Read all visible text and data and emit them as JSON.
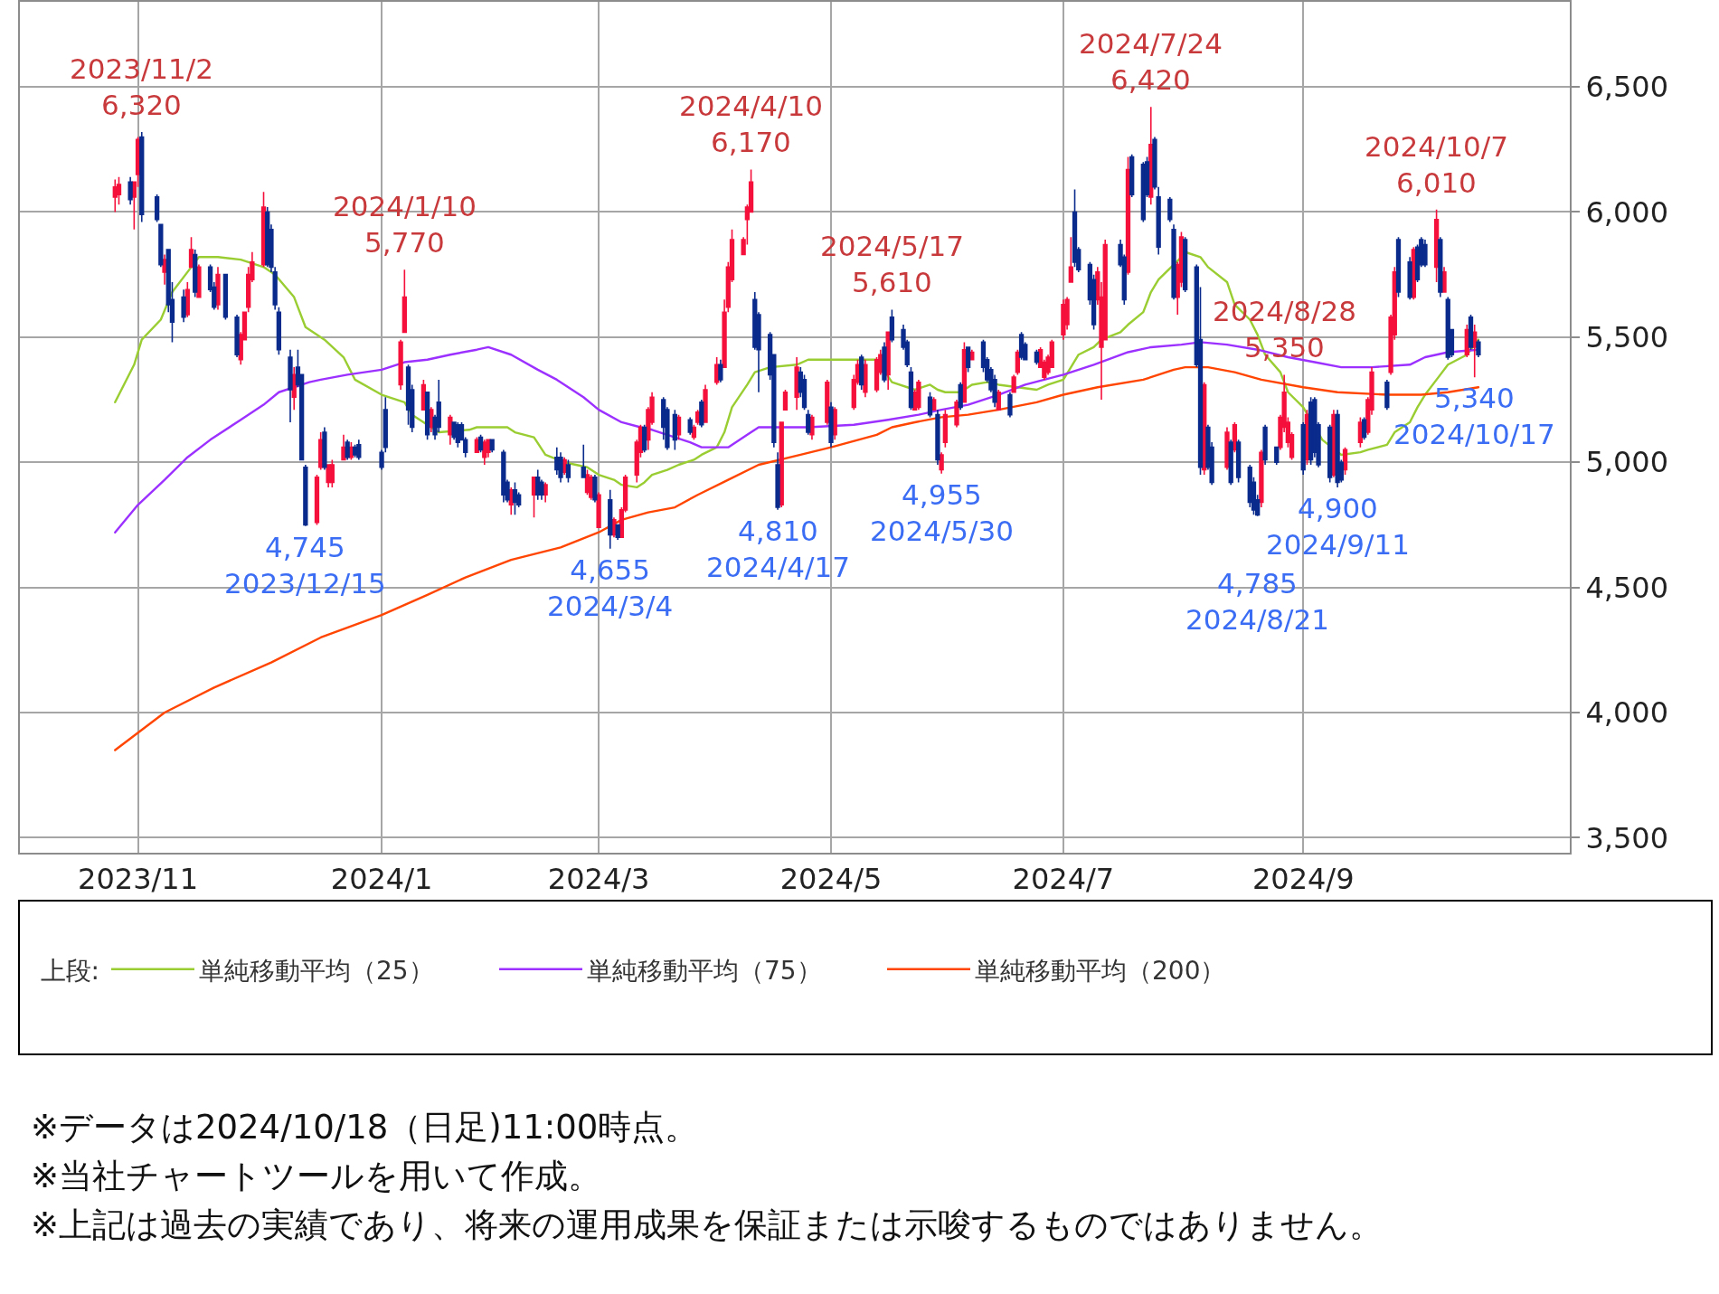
{
  "chart_data": {
    "type": "candlestick",
    "x": [
      "2023-10-26",
      "2023-10-27",
      "2023-10-30",
      "2023-10-31",
      "2023-11-01",
      "2023-11-02",
      "2023-11-06",
      "2023-11-07",
      "2023-11-08",
      "2023-11-09",
      "2023-11-10",
      "2023-11-13",
      "2023-11-14",
      "2023-11-15",
      "2023-11-16",
      "2023-11-17",
      "2023-11-20",
      "2023-11-21",
      "2023-11-22",
      "2023-11-24",
      "2023-11-27",
      "2023-11-28",
      "2023-11-29",
      "2023-11-30",
      "2023-12-01",
      "2023-12-04",
      "2023-12-05",
      "2023-12-06",
      "2023-12-07",
      "2023-12-08",
      "2023-12-11",
      "2023-12-12",
      "2023-12-13",
      "2023-12-14",
      "2023-12-15",
      "2023-12-18",
      "2023-12-19",
      "2023-12-20",
      "2023-12-21",
      "2023-12-22",
      "2023-12-25",
      "2023-12-26",
      "2023-12-27",
      "2023-12-28",
      "2023-12-29",
      "2024-01-04",
      "2024-01-05",
      "2024-01-09",
      "2024-01-10",
      "2024-01-11",
      "2024-01-12",
      "2024-01-15",
      "2024-01-16",
      "2024-01-17",
      "2024-01-18",
      "2024-01-19",
      "2024-01-22",
      "2024-01-23",
      "2024-01-24",
      "2024-01-25",
      "2024-01-26",
      "2024-01-29",
      "2024-01-30",
      "2024-01-31",
      "2024-02-01",
      "2024-02-02",
      "2024-02-05",
      "2024-02-06",
      "2024-02-07",
      "2024-02-08",
      "2024-02-09",
      "2024-02-13",
      "2024-02-14",
      "2024-02-15",
      "2024-02-16",
      "2024-02-19",
      "2024-02-20",
      "2024-02-21",
      "2024-02-22",
      "2024-02-26",
      "2024-02-27",
      "2024-02-28",
      "2024-02-29",
      "2024-03-01",
      "2024-03-04",
      "2024-03-05",
      "2024-03-06",
      "2024-03-07",
      "2024-03-08",
      "2024-03-11",
      "2024-03-12",
      "2024-03-13",
      "2024-03-14",
      "2024-03-15",
      "2024-03-18",
      "2024-03-19",
      "2024-03-21",
      "2024-03-22",
      "2024-03-25",
      "2024-03-26",
      "2024-03-27",
      "2024-03-28",
      "2024-03-29",
      "2024-04-01",
      "2024-04-02",
      "2024-04-03",
      "2024-04-04",
      "2024-04-05",
      "2024-04-08",
      "2024-04-09",
      "2024-04-10",
      "2024-04-11",
      "2024-04-12",
      "2024-04-15",
      "2024-04-16",
      "2024-04-17",
      "2024-04-18",
      "2024-04-19",
      "2024-04-22",
      "2024-04-23",
      "2024-04-24",
      "2024-04-25",
      "2024-04-26",
      "2024-04-30",
      "2024-05-01",
      "2024-05-02",
      "2024-05-07",
      "2024-05-08",
      "2024-05-09",
      "2024-05-10",
      "2024-05-13",
      "2024-05-14",
      "2024-05-15",
      "2024-05-16",
      "2024-05-17",
      "2024-05-20",
      "2024-05-21",
      "2024-05-22",
      "2024-05-23",
      "2024-05-24",
      "2024-05-27",
      "2024-05-28",
      "2024-05-29",
      "2024-05-30",
      "2024-05-31",
      "2024-06-03",
      "2024-06-04",
      "2024-06-05",
      "2024-06-06",
      "2024-06-07",
      "2024-06-10",
      "2024-06-11",
      "2024-06-12",
      "2024-06-13",
      "2024-06-14",
      "2024-06-17",
      "2024-06-18",
      "2024-06-19",
      "2024-06-20",
      "2024-06-21",
      "2024-06-24",
      "2024-06-25",
      "2024-06-26",
      "2024-06-27",
      "2024-06-28",
      "2024-07-01",
      "2024-07-02",
      "2024-07-03",
      "2024-07-04",
      "2024-07-05",
      "2024-07-08",
      "2024-07-09",
      "2024-07-10",
      "2024-07-11",
      "2024-07-12",
      "2024-07-16",
      "2024-07-17",
      "2024-07-18",
      "2024-07-19",
      "2024-07-22",
      "2024-07-23",
      "2024-07-24",
      "2024-07-25",
      "2024-07-26",
      "2024-07-29",
      "2024-07-30",
      "2024-07-31",
      "2024-08-01",
      "2024-08-02",
      "2024-08-05",
      "2024-08-06",
      "2024-08-07",
      "2024-08-08",
      "2024-08-09",
      "2024-08-13",
      "2024-08-14",
      "2024-08-15",
      "2024-08-16",
      "2024-08-19",
      "2024-08-20",
      "2024-08-21",
      "2024-08-22",
      "2024-08-23",
      "2024-08-26",
      "2024-08-27",
      "2024-08-28",
      "2024-08-29",
      "2024-08-30",
      "2024-09-02",
      "2024-09-03",
      "2024-09-04",
      "2024-09-05",
      "2024-09-06",
      "2024-09-09",
      "2024-09-10",
      "2024-09-11",
      "2024-09-12",
      "2024-09-13",
      "2024-09-17",
      "2024-09-18",
      "2024-09-19",
      "2024-09-20",
      "2024-09-24",
      "2024-09-25",
      "2024-09-26",
      "2024-09-27",
      "2024-09-30",
      "2024-10-01",
      "2024-10-02",
      "2024-10-03",
      "2024-10-04",
      "2024-10-07",
      "2024-10-08",
      "2024-10-09",
      "2024-10-10",
      "2024-10-11",
      "2024-10-15",
      "2024-10-16",
      "2024-10-17",
      "2024-10-18"
    ],
    "ohlc": [
      [
        6060,
        6130,
        6000,
        6100
      ],
      [
        6070,
        6140,
        6030,
        6110
      ],
      [
        6120,
        6140,
        6030,
        6050
      ],
      [
        6060,
        6120,
        5930,
        6120
      ],
      [
        6150,
        6300,
        6100,
        6290
      ],
      [
        6300,
        6320,
        5960,
        5990
      ],
      [
        6060,
        6070,
        5960,
        5970
      ],
      [
        5950,
        5950,
        5780,
        5790
      ],
      [
        5760,
        5830,
        5710,
        5810
      ],
      [
        5850,
        5850,
        5600,
        5630
      ],
      [
        5650,
        5720,
        5480,
        5560
      ],
      [
        5660,
        5690,
        5560,
        5580
      ],
      [
        5590,
        5720,
        5580,
        5690
      ],
      [
        5780,
        5900,
        5780,
        5850
      ],
      [
        5830,
        5850,
        5660,
        5680
      ],
      [
        5660,
        5790,
        5660,
        5780
      ],
      [
        5780,
        5790,
        5680,
        5690
      ],
      [
        5700,
        5720,
        5610,
        5620
      ],
      [
        5630,
        5780,
        5610,
        5750
      ],
      [
        5750,
        5750,
        5570,
        5580
      ],
      [
        5580,
        5590,
        5420,
        5430
      ],
      [
        5410,
        5520,
        5390,
        5510
      ],
      [
        5490,
        5600,
        5490,
        5600
      ],
      [
        5620,
        5780,
        5600,
        5750
      ],
      [
        5730,
        5840,
        5720,
        5800
      ],
      [
        5790,
        6080,
        5780,
        6020
      ],
      [
        6000,
        6020,
        5780,
        5790
      ],
      [
        5930,
        5950,
        5760,
        5780
      ],
      [
        5760,
        5780,
        5610,
        5630
      ],
      [
        5600,
        5620,
        5430,
        5450
      ],
      [
        5420,
        5450,
        5160,
        5290
      ],
      [
        5260,
        5380,
        5210,
        5350
      ],
      [
        5380,
        5450,
        5300,
        5310
      ],
      [
        5350,
        5350,
        5010,
        5010
      ],
      [
        4980,
        4990,
        4745,
        4750
      ],
      [
        4760,
        4950,
        4750,
        4940
      ],
      [
        4980,
        5120,
        4970,
        5090
      ],
      [
        5120,
        5140,
        4970,
        4980
      ],
      [
        4920,
        4990,
        4900,
        4990
      ],
      [
        4920,
        5010,
        4900,
        4990
      ],
      [
        5010,
        5110,
        5010,
        5060
      ],
      [
        5080,
        5090,
        5010,
        5020
      ],
      [
        5020,
        5080,
        5010,
        5060
      ],
      [
        5060,
        5070,
        5020,
        5030
      ],
      [
        5070,
        5090,
        5010,
        5020
      ],
      [
        5040,
        5050,
        4970,
        4980
      ],
      [
        5210,
        5260,
        5040,
        5060
      ],
      [
        5310,
        5490,
        5290,
        5480
      ],
      [
        5520,
        5770,
        5520,
        5660
      ],
      [
        5380,
        5390,
        5150,
        5210
      ],
      [
        5290,
        5310,
        5120,
        5140
      ],
      [
        5210,
        5330,
        5210,
        5310
      ],
      [
        5280,
        5280,
        5090,
        5110
      ],
      [
        5140,
        5220,
        5120,
        5210
      ],
      [
        5180,
        5190,
        5090,
        5110
      ],
      [
        5240,
        5330,
        5120,
        5140
      ],
      [
        5110,
        5190,
        5070,
        5180
      ],
      [
        5160,
        5160,
        5090,
        5100
      ],
      [
        5150,
        5160,
        5060,
        5080
      ],
      [
        5150,
        5160,
        5090,
        5090
      ],
      [
        5090,
        5100,
        5020,
        5040
      ],
      [
        5040,
        5100,
        5040,
        5090
      ],
      [
        5100,
        5110,
        5040,
        5050
      ],
      [
        5020,
        5090,
        4990,
        5080
      ],
      [
        5040,
        5090,
        5020,
        5090
      ],
      [
        5090,
        5090,
        5040,
        5050
      ],
      [
        5040,
        5050,
        4840,
        4870
      ],
      [
        4920,
        4930,
        4840,
        4850
      ],
      [
        4830,
        4900,
        4790,
        4890
      ],
      [
        4890,
        4920,
        4790,
        4840
      ],
      [
        4870,
        4880,
        4820,
        4830
      ],
      [
        4870,
        4940,
        4780,
        4940
      ],
      [
        4940,
        4970,
        4850,
        4870
      ],
      [
        4920,
        4930,
        4850,
        4870
      ],
      [
        4870,
        4920,
        4840,
        4910
      ],
      [
        5020,
        5060,
        4950,
        4970
      ],
      [
        5020,
        5040,
        4920,
        4940
      ],
      [
        4960,
        5020,
        4950,
        5010
      ],
      [
        4990,
        5010,
        4920,
        4940
      ],
      [
        4980,
        5070,
        4940,
        4940
      ],
      [
        4880,
        4970,
        4870,
        4950
      ],
      [
        4860,
        4950,
        4850,
        4940
      ],
      [
        4940,
        4950,
        4840,
        4850
      ],
      [
        4740,
        4880,
        4740,
        4870
      ],
      [
        4850,
        4890,
        4655,
        4710
      ],
      [
        4710,
        4780,
        4700,
        4770
      ],
      [
        4750,
        4750,
        4690,
        4700
      ],
      [
        4700,
        4820,
        4700,
        4810
      ],
      [
        4810,
        4950,
        4800,
        4940
      ],
      [
        4950,
        5090,
        4920,
        5080
      ],
      [
        5040,
        5150,
        5020,
        5140
      ],
      [
        5140,
        5150,
        5040,
        5050
      ],
      [
        5090,
        5220,
        5050,
        5210
      ],
      [
        5160,
        5280,
        5150,
        5260
      ],
      [
        5250,
        5260,
        5090,
        5140
      ],
      [
        5210,
        5220,
        5050,
        5060
      ],
      [
        5190,
        5210,
        5050,
        5090
      ],
      [
        5110,
        5190,
        5090,
        5180
      ],
      [
        5170,
        5180,
        5110,
        5120
      ],
      [
        5100,
        5150,
        5090,
        5140
      ],
      [
        5160,
        5210,
        5150,
        5200
      ],
      [
        5240,
        5250,
        5140,
        5150
      ],
      [
        5160,
        5310,
        5160,
        5290
      ],
      [
        5320,
        5420,
        5310,
        5390
      ],
      [
        5390,
        5410,
        5320,
        5330
      ],
      [
        5380,
        5650,
        5380,
        5600
      ],
      [
        5620,
        5800,
        5600,
        5780
      ],
      [
        5730,
        5930,
        5720,
        5890
      ],
      [
        5830,
        5900,
        5830,
        5890
      ],
      [
        5970,
        6030,
        5870,
        6020
      ],
      [
        6000,
        6170,
        6000,
        6120
      ],
      [
        5650,
        5680,
        5450,
        5460
      ],
      [
        5590,
        5600,
        5280,
        5450
      ],
      [
        5510,
        5520,
        5330,
        5350
      ],
      [
        5430,
        5430,
        5060,
        5080
      ],
      [
        4990,
        5040,
        4810,
        4820
      ],
      [
        4830,
        5160,
        4820,
        5160
      ],
      [
        5210,
        5290,
        5210,
        5280
      ],
      [
        5260,
        5420,
        5210,
        5380
      ],
      [
        5360,
        5380,
        5260,
        5280
      ],
      [
        5330,
        5350,
        5210,
        5220
      ],
      [
        5190,
        5210,
        5110,
        5120
      ],
      [
        5110,
        5190,
        5090,
        5180
      ],
      [
        5160,
        5330,
        5150,
        5320
      ],
      [
        5220,
        5240,
        5060,
        5080
      ],
      [
        5110,
        5220,
        5090,
        5210
      ],
      [
        5220,
        5350,
        5210,
        5330
      ],
      [
        5320,
        5410,
        5310,
        5390
      ],
      [
        5420,
        5430,
        5290,
        5310
      ],
      [
        5280,
        5410,
        5260,
        5390
      ],
      [
        5290,
        5420,
        5280,
        5410
      ],
      [
        5360,
        5450,
        5350,
        5430
      ],
      [
        5460,
        5480,
        5320,
        5330
      ],
      [
        5350,
        5520,
        5290,
        5520
      ],
      [
        5580,
        5610,
        5480,
        5490
      ],
      [
        5530,
        5550,
        5450,
        5460
      ],
      [
        5480,
        5490,
        5380,
        5390
      ],
      [
        5360,
        5380,
        5210,
        5220
      ],
      [
        5210,
        5290,
        5210,
        5280
      ],
      [
        5220,
        5330,
        5210,
        5320
      ],
      [
        5260,
        5280,
        5180,
        5190
      ],
      [
        5210,
        5260,
        5210,
        5250
      ],
      [
        5190,
        5210,
        4990,
        5010
      ],
      [
        4970,
        5040,
        4955,
        5030
      ],
      [
        5080,
        5210,
        5060,
        5190
      ],
      [
        5150,
        5250,
        5140,
        5240
      ],
      [
        5310,
        5320,
        5210,
        5220
      ],
      [
        5240,
        5480,
        5240,
        5450
      ],
      [
        5460,
        5460,
        5360,
        5380
      ],
      [
        5410,
        5450,
        5410,
        5440
      ],
      [
        5480,
        5490,
        5360,
        5380
      ],
      [
        5410,
        5420,
        5320,
        5330
      ],
      [
        5370,
        5380,
        5280,
        5290
      ],
      [
        5330,
        5350,
        5220,
        5240
      ],
      [
        5210,
        5290,
        5210,
        5280
      ],
      [
        5270,
        5280,
        5180,
        5190
      ],
      [
        5280,
        5350,
        5280,
        5340
      ],
      [
        5360,
        5450,
        5350,
        5440
      ],
      [
        5510,
        5520,
        5410,
        5420
      ],
      [
        5470,
        5480,
        5410,
        5410
      ],
      [
        5440,
        5450,
        5390,
        5400
      ],
      [
        5380,
        5460,
        5380,
        5450
      ],
      [
        5340,
        5410,
        5330,
        5400
      ],
      [
        5360,
        5430,
        5350,
        5420
      ],
      [
        5380,
        5490,
        5380,
        5480
      ],
      [
        5510,
        5650,
        5490,
        5630
      ],
      [
        5550,
        5660,
        5530,
        5650
      ],
      [
        5720,
        5900,
        5720,
        5780
      ],
      [
        6000,
        6090,
        5780,
        5800
      ],
      [
        5850,
        5860,
        5760,
        5770
      ],
      [
        5790,
        5800,
        5630,
        5650
      ],
      [
        5730,
        5750,
        5530,
        5550
      ],
      [
        5650,
        5780,
        5630,
        5760
      ],
      [
        5460,
        5720,
        5250,
        5660
      ],
      [
        5490,
        5890,
        5490,
        5870
      ],
      [
        5870,
        5890,
        5780,
        5790
      ],
      [
        5820,
        5830,
        5630,
        5650
      ],
      [
        5760,
        6220,
        5750,
        6170
      ],
      [
        6220,
        6230,
        6060,
        6070
      ],
      [
        6190,
        6200,
        5960,
        5970
      ],
      [
        6200,
        6220,
        6060,
        6070
      ],
      [
        6060,
        6420,
        6030,
        6270
      ],
      [
        6290,
        6300,
        6090,
        6100
      ],
      [
        6060,
        6100,
        5830,
        5860
      ],
      [
        6050,
        6060,
        5960,
        5970
      ],
      [
        5930,
        5950,
        5650,
        5660
      ],
      [
        5660,
        5800,
        5590,
        5790
      ],
      [
        5720,
        5920,
        5700,
        5900
      ],
      [
        5890,
        5900,
        5680,
        5690
      ],
      [
        5780,
        5790,
        5380,
        5390
      ],
      [
        5490,
        5700,
        4950,
        4980
      ],
      [
        4970,
        5320,
        4950,
        5310
      ],
      [
        5140,
        5150,
        4970,
        4980
      ],
      [
        5060,
        5080,
        4910,
        4920
      ],
      [
        4980,
        5140,
        4970,
        5120
      ],
      [
        5080,
        5090,
        4910,
        4920
      ],
      [
        5050,
        5160,
        5040,
        5150
      ],
      [
        5080,
        5090,
        4920,
        4940
      ],
      [
        4980,
        4990,
        4820,
        4840
      ],
      [
        4920,
        4940,
        4790,
        4810
      ],
      [
        4850,
        4870,
        4785,
        4790
      ],
      [
        4840,
        5050,
        4820,
        5040
      ],
      [
        5140,
        5150,
        4990,
        5010
      ],
      [
        5060,
        5060,
        4990,
        5000
      ],
      [
        5060,
        5190,
        5050,
        5180
      ],
      [
        5140,
        5350,
        5120,
        5280
      ],
      [
        5080,
        5180,
        5060,
        5160
      ],
      [
        5020,
        5120,
        5010,
        5110
      ],
      [
        5150,
        5160,
        4950,
        4970
      ],
      [
        5010,
        5210,
        4990,
        5190
      ],
      [
        5240,
        5260,
        4990,
        5010
      ],
      [
        5250,
        5260,
        5020,
        5040
      ],
      [
        5150,
        5160,
        4980,
        4990
      ],
      [
        5140,
        5150,
        4920,
        4940
      ],
      [
        4950,
        5210,
        4940,
        5190
      ],
      [
        5190,
        5210,
        4900,
        4920
      ],
      [
        5000,
        5010,
        4920,
        4930
      ],
      [
        4970,
        5060,
        4950,
        5050
      ],
      [
        5080,
        5180,
        5060,
        5160
      ],
      [
        5170,
        5180,
        5090,
        5100
      ],
      [
        5120,
        5260,
        5110,
        5250
      ],
      [
        5210,
        5380,
        5190,
        5360
      ],
      [
        5320,
        5330,
        5210,
        5220
      ],
      [
        5360,
        5590,
        5350,
        5580
      ],
      [
        5510,
        5780,
        5490,
        5760
      ],
      [
        5890,
        5900,
        5660,
        5680
      ],
      [
        5800,
        5820,
        5650,
        5660
      ],
      [
        5660,
        5860,
        5650,
        5850
      ],
      [
        5860,
        5870,
        5720,
        5730
      ],
      [
        5890,
        5900,
        5780,
        5790
      ],
      [
        5870,
        5890,
        5780,
        5790
      ],
      [
        5780,
        6010,
        5720,
        5970
      ],
      [
        5890,
        5900,
        5660,
        5680
      ],
      [
        5680,
        5780,
        5680,
        5760
      ],
      [
        5650,
        5660,
        5410,
        5420
      ],
      [
        5530,
        5530,
        5420,
        5430
      ],
      [
        5430,
        5550,
        5420,
        5530
      ],
      [
        5580,
        5590,
        5450,
        5460
      ],
      [
        5460,
        5550,
        5340,
        5520
      ],
      [
        5480,
        5490,
        5420,
        5430
      ]
    ],
    "colors": [
      "#f5103c",
      "#f5103c",
      "#0a2a8c",
      "#f5103c",
      "#f5103c",
      "#0a2a8c",
      "#0a2a8c",
      "#0a2a8c",
      "#f5103c",
      "#0a2a8c",
      "#0a2a8c",
      "#0a2a8c",
      "#f5103c",
      "#f5103c",
      "#0a2a8c",
      "#f5103c",
      "#0a2a8c",
      "#0a2a8c",
      "#f5103c",
      "#0a2a8c",
      "#0a2a8c",
      "#f5103c",
      "#f5103c",
      "#f5103c",
      "#f5103c",
      "#f5103c",
      "#0a2a8c",
      "#0a2a8c",
      "#0a2a8c",
      "#0a2a8c",
      "#0a2a8c",
      "#f5103c",
      "#0a2a8c",
      "#0a2a8c",
      "#0a2a8c",
      "#f5103c",
      "#f5103c",
      "#0a2a8c",
      "#f5103c",
      "#f5103c",
      "#f5103c",
      "#0a2a8c",
      "#f5103c",
      "#0a2a8c",
      "#0a2a8c",
      "#0a2a8c",
      "#0a2a8c",
      "#f5103c",
      "#f5103c",
      "#0a2a8c",
      "#0a2a8c",
      "#f5103c",
      "#0a2a8c",
      "#f5103c",
      "#0a2a8c",
      "#0a2a8c",
      "#f5103c",
      "#0a2a8c",
      "#0a2a8c",
      "#0a2a8c",
      "#0a2a8c",
      "#f5103c",
      "#0a2a8c",
      "#f5103c",
      "#f5103c",
      "#0a2a8c",
      "#0a2a8c",
      "#0a2a8c",
      "#f5103c",
      "#0a2a8c",
      "#0a2a8c",
      "#f5103c",
      "#0a2a8c",
      "#0a2a8c",
      "#f5103c",
      "#0a2a8c",
      "#0a2a8c",
      "#f5103c",
      "#0a2a8c",
      "#0a2a8c",
      "#f5103c",
      "#f5103c",
      "#0a2a8c",
      "#f5103c",
      "#0a2a8c",
      "#f5103c",
      "#0a2a8c",
      "#f5103c",
      "#f5103c",
      "#f5103c",
      "#f5103c",
      "#0a2a8c",
      "#f5103c",
      "#f5103c",
      "#0a2a8c",
      "#0a2a8c",
      "#0a2a8c",
      "#f5103c",
      "#0a2a8c",
      "#f5103c",
      "#f5103c",
      "#0a2a8c",
      "#f5103c",
      "#f5103c",
      "#0a2a8c",
      "#f5103c",
      "#f5103c",
      "#f5103c",
      "#f5103c",
      "#f5103c",
      "#f5103c",
      "#0a2a8c",
      "#0a2a8c",
      "#0a2a8c",
      "#0a2a8c",
      "#0a2a8c",
      "#f5103c",
      "#f5103c",
      "#f5103c",
      "#0a2a8c",
      "#0a2a8c",
      "#0a2a8c",
      "#f5103c",
      "#f5103c",
      "#0a2a8c",
      "#f5103c",
      "#f5103c",
      "#f5103c",
      "#0a2a8c",
      "#f5103c",
      "#f5103c",
      "#f5103c",
      "#0a2a8c",
      "#f5103c",
      "#0a2a8c",
      "#0a2a8c",
      "#0a2a8c",
      "#0a2a8c",
      "#f5103c",
      "#f5103c",
      "#0a2a8c",
      "#f5103c",
      "#0a2a8c",
      "#f5103c",
      "#f5103c",
      "#f5103c",
      "#0a2a8c",
      "#f5103c",
      "#0a2a8c",
      "#f5103c",
      "#0a2a8c",
      "#0a2a8c",
      "#0a2a8c",
      "#0a2a8c",
      "#f5103c",
      "#0a2a8c",
      "#f5103c",
      "#f5103c",
      "#0a2a8c",
      "#0a2a8c",
      "#0a2a8c",
      "#f5103c",
      "#f5103c",
      "#f5103c",
      "#f5103c",
      "#f5103c",
      "#f5103c",
      "#f5103c",
      "#0a2a8c",
      "#0a2a8c",
      "#0a2a8c",
      "#0a2a8c",
      "#f5103c",
      "#f5103c",
      "#f5103c",
      "#0a2a8c",
      "#0a2a8c",
      "#f5103c",
      "#0a2a8c",
      "#0a2a8c",
      "#0a2a8c",
      "#f5103c",
      "#0a2a8c",
      "#0a2a8c",
      "#0a2a8c",
      "#0a2a8c",
      "#f5103c",
      "#f5103c",
      "#0a2a8c",
      "#0a2a8c",
      "#0a2a8c",
      "#f5103c",
      "#0a2a8c",
      "#0a2a8c",
      "#f5103c",
      "#0a2a8c",
      "#f5103c",
      "#0a2a8c",
      "#0a2a8c",
      "#0a2a8c",
      "#0a2a8c",
      "#f5103c",
      "#0a2a8c",
      "#0a2a8c",
      "#f5103c",
      "#f5103c",
      "#f5103c",
      "#f5103c",
      "#0a2a8c",
      "#f5103c",
      "#0a2a8c",
      "#0a2a8c",
      "#0a2a8c",
      "#0a2a8c",
      "#f5103c",
      "#0a2a8c",
      "#0a2a8c",
      "#f5103c",
      "#f5103c",
      "#0a2a8c",
      "#f5103c",
      "#f5103c",
      "#0a2a8c",
      "#f5103c",
      "#f5103c",
      "#0a2a8c",
      "#0a2a8c",
      "#f5103c",
      "#0a2a8c",
      "#0a2a8c",
      "#0a2a8c",
      "#f5103c",
      "#0a2a8c",
      "#f5103c",
      "#0a2a8c",
      "#0a2a8c",
      "#f5103c",
      "#0a2a8c",
      "#f5103c",
      "#0a2a8c"
    ],
    "series": [
      {
        "type": "line",
        "name": "単純移動平均（25）",
        "color": "#9acd32",
        "x": [
          "2023-10-26",
          "2023-10-31",
          "2023-11-02",
          "2023-11-07",
          "2023-11-10",
          "2023-11-15",
          "2023-11-17",
          "2023-11-22",
          "2023-11-28",
          "2023-12-04",
          "2023-12-07",
          "2023-12-12",
          "2023-12-15",
          "2023-12-20",
          "2023-12-25",
          "2023-12-28",
          "2024-01-04",
          "2024-01-10",
          "2024-01-12",
          "2024-01-16",
          "2024-01-19",
          "2024-01-27",
          "2024-01-29",
          "2024-02-01",
          "2024-02-06",
          "2024-02-08",
          "2024-02-13",
          "2024-02-16",
          "2024-02-21",
          "2024-02-27",
          "2024-03-01",
          "2024-03-05",
          "2024-03-07",
          "2024-03-11",
          "2024-03-13",
          "2024-03-15",
          "2024-03-19",
          "2024-03-22",
          "2024-03-26",
          "2024-03-28",
          "2024-04-01",
          "2024-04-03",
          "2024-04-05",
          "2024-04-09",
          "2024-04-11",
          "2024-04-15",
          "2024-04-22",
          "2024-04-25",
          "2024-05-08",
          "2024-05-13",
          "2024-05-17",
          "2024-05-23",
          "2024-05-27",
          "2024-05-29",
          "2024-05-31",
          "2024-06-04",
          "2024-06-07",
          "2024-06-11",
          "2024-06-14",
          "2024-06-19",
          "2024-06-24",
          "2024-06-27",
          "2024-07-01",
          "2024-07-03",
          "2024-07-05",
          "2024-07-09",
          "2024-07-11",
          "2024-07-16",
          "2024-07-18",
          "2024-07-22",
          "2024-07-24",
          "2024-07-26",
          "2024-07-30",
          "2024-08-01",
          "2024-08-02",
          "2024-08-06",
          "2024-08-08",
          "2024-08-13",
          "2024-08-15",
          "2024-08-19",
          "2024-08-21",
          "2024-08-23",
          "2024-08-27",
          "2024-08-29",
          "2024-09-02",
          "2024-09-07",
          "2024-09-12",
          "2024-09-17",
          "2024-09-19",
          "2024-09-24",
          "2024-09-26",
          "2024-09-30",
          "2024-10-02",
          "2024-10-04",
          "2024-10-08",
          "2024-10-10",
          "2024-10-15",
          "2024-10-17",
          "2024-10-18"
        ],
        "values": [
          5240,
          5390,
          5490,
          5570,
          5680,
          5780,
          5820,
          5820,
          5810,
          5780,
          5750,
          5660,
          5540,
          5490,
          5420,
          5330,
          5270,
          5240,
          5190,
          5150,
          5120,
          5130,
          5140,
          5140,
          5140,
          5120,
          5100,
          5030,
          5000,
          4980,
          4950,
          4930,
          4910,
          4900,
          4920,
          4950,
          4970,
          4990,
          5010,
          5030,
          5060,
          5120,
          5220,
          5310,
          5360,
          5380,
          5390,
          5410,
          5410,
          5410,
          5320,
          5290,
          5310,
          5290,
          5280,
          5280,
          5310,
          5320,
          5310,
          5300,
          5290,
          5310,
          5330,
          5380,
          5430,
          5460,
          5490,
          5520,
          5550,
          5600,
          5680,
          5730,
          5790,
          5820,
          5840,
          5820,
          5780,
          5720,
          5630,
          5570,
          5510,
          5430,
          5360,
          5280,
          5220,
          5090,
          5030,
          5040,
          5050,
          5070,
          5120,
          5160,
          5220,
          5270,
          5350,
          5390,
          5430,
          5470,
          5490
        ]
      },
      {
        "type": "line",
        "name": "単純移動平均（75）",
        "color": "#9b30ff",
        "x": [
          "2023-10-26",
          "2023-11-01",
          "2023-11-08",
          "2023-11-14",
          "2023-11-20",
          "2023-11-28",
          "2023-12-04",
          "2023-12-08",
          "2023-12-16",
          "2023-12-19",
          "2023-12-26",
          "2024-01-04",
          "2024-01-10",
          "2024-01-16",
          "2024-01-22",
          "2024-01-29",
          "2024-02-01",
          "2024-02-07",
          "2024-02-14",
          "2024-02-19",
          "2024-02-26",
          "2024-03-01",
          "2024-03-07",
          "2024-03-12",
          "2024-03-15",
          "2024-03-19",
          "2024-03-25",
          "2024-03-28",
          "2024-04-04",
          "2024-04-09",
          "2024-04-12",
          "2024-04-25",
          "2024-05-07",
          "2024-05-16",
          "2024-05-24",
          "2024-05-30",
          "2024-06-06",
          "2024-06-14",
          "2024-06-21",
          "2024-07-01",
          "2024-07-09",
          "2024-07-18",
          "2024-07-24",
          "2024-08-01",
          "2024-08-06",
          "2024-08-13",
          "2024-08-21",
          "2024-08-29",
          "2024-09-05",
          "2024-09-12",
          "2024-09-20",
          "2024-09-30",
          "2024-10-04",
          "2024-10-10",
          "2024-10-18"
        ],
        "values": [
          4720,
          4830,
          4930,
          5020,
          5090,
          5170,
          5230,
          5280,
          5320,
          5330,
          5350,
          5370,
          5400,
          5410,
          5430,
          5450,
          5460,
          5430,
          5370,
          5330,
          5260,
          5210,
          5160,
          5140,
          5130,
          5110,
          5080,
          5060,
          5060,
          5110,
          5140,
          5140,
          5150,
          5170,
          5190,
          5210,
          5230,
          5270,
          5310,
          5350,
          5390,
          5440,
          5460,
          5470,
          5480,
          5470,
          5450,
          5420,
          5400,
          5380,
          5380,
          5390,
          5420,
          5440,
          5450
        ]
      },
      {
        "type": "line",
        "name": "単純移動平均（200）",
        "color": "#ff4500",
        "x": [
          "2023-10-26",
          "2023-11-08",
          "2023-11-21",
          "2023-12-06",
          "2023-12-19",
          "2024-01-04",
          "2024-01-16",
          "2024-01-26",
          "2024-02-07",
          "2024-02-20",
          "2024-03-01",
          "2024-03-07",
          "2024-03-14",
          "2024-03-21",
          "2024-03-27",
          "2024-04-04",
          "2024-04-12",
          "2024-04-23",
          "2024-05-01",
          "2024-05-13",
          "2024-05-17",
          "2024-05-23",
          "2024-05-30",
          "2024-06-06",
          "2024-06-14",
          "2024-06-24",
          "2024-07-01",
          "2024-07-10",
          "2024-07-22",
          "2024-07-30",
          "2024-08-02",
          "2024-08-08",
          "2024-08-15",
          "2024-08-22",
          "2024-09-02",
          "2024-09-11",
          "2024-09-24",
          "2024-10-03",
          "2024-10-10",
          "2024-10-18"
        ],
        "values": [
          3850,
          4000,
          4100,
          4200,
          4300,
          4390,
          4470,
          4540,
          4610,
          4660,
          4720,
          4770,
          4800,
          4820,
          4870,
          4930,
          4990,
          5030,
          5060,
          5110,
          5140,
          5160,
          5180,
          5190,
          5210,
          5240,
          5270,
          5300,
          5330,
          5370,
          5380,
          5380,
          5360,
          5330,
          5300,
          5280,
          5270,
          5270,
          5280,
          5300
        ]
      }
    ],
    "xlim": [
      "2023-10-01",
      "2024-11-11"
    ],
    "xticks": [
      {
        "value": "2023-11-01",
        "label": "2023/11"
      },
      {
        "value": "2024-01-04",
        "label": "2024/1"
      },
      {
        "value": "2024-03-01",
        "label": "2024/3"
      },
      {
        "value": "2024-05-01",
        "label": "2024/5"
      },
      {
        "value": "2024-07-01",
        "label": "2024/7"
      },
      {
        "value": "2024-09-02",
        "label": "2024/9"
      }
    ],
    "ylim": [
      3440,
      6840
    ],
    "yticks": [
      {
        "value": 3500,
        "label": "3,500"
      },
      {
        "value": 4000,
        "label": "4,000"
      },
      {
        "value": 4500,
        "label": "4,500"
      },
      {
        "value": 5000,
        "label": "5,000"
      },
      {
        "value": 5500,
        "label": "5,500"
      },
      {
        "value": 6000,
        "label": "6,000"
      },
      {
        "value": 6500,
        "label": "6,500"
      }
    ],
    "grid": true,
    "legend": "bottom",
    "legend_title": "上段:",
    "annotations": [
      {
        "text": "2023/11/2\n6,320",
        "x": "2023-11-02",
        "y": 6320
      },
      {
        "text": "4,745\n2023/12/15",
        "x": "2023-12-15",
        "y": 4745
      },
      {
        "text": "2024/1/10\n5,770",
        "x": "2024-01-10",
        "y": 5770
      },
      {
        "text": "4,655\n2024/3/4",
        "x": "2024-03-04",
        "y": 4655
      },
      {
        "text": "2024/4/10\n6,170",
        "x": "2024-04-10",
        "y": 6170
      },
      {
        "text": "4,810\n2024/4/17",
        "x": "2024-04-17",
        "y": 4810
      },
      {
        "text": "2024/5/17\n5,610",
        "x": "2024-05-17",
        "y": 5610
      },
      {
        "text": "4,955\n2024/5/30",
        "x": "2024-05-30",
        "y": 4955
      },
      {
        "text": "2024/7/24\n6,420",
        "x": "2024-07-24",
        "y": 6420
      },
      {
        "text": "4,785\n2024/8/21",
        "x": "2024-08-21",
        "y": 4785
      },
      {
        "text": "2024/8/28\n5,350",
        "x": "2024-08-28",
        "y": 5350
      },
      {
        "text": "4,900\n2024/9/11",
        "x": "2024-09-11",
        "y": 4900
      },
      {
        "text": "2024/10/7\n6,010",
        "x": "2024-10-07",
        "y": 6010
      },
      {
        "text": "5,340\n2024/10/17",
        "x": "2024-10-17",
        "y": 5340
      },
      "※データは2024/10/18（日足)11:00時点。",
      "※当社チャートツールを用いて作成。",
      "※上記は過去の実績であり、将来の運用成果を保証または示唆するものではありません。"
    ]
  }
}
